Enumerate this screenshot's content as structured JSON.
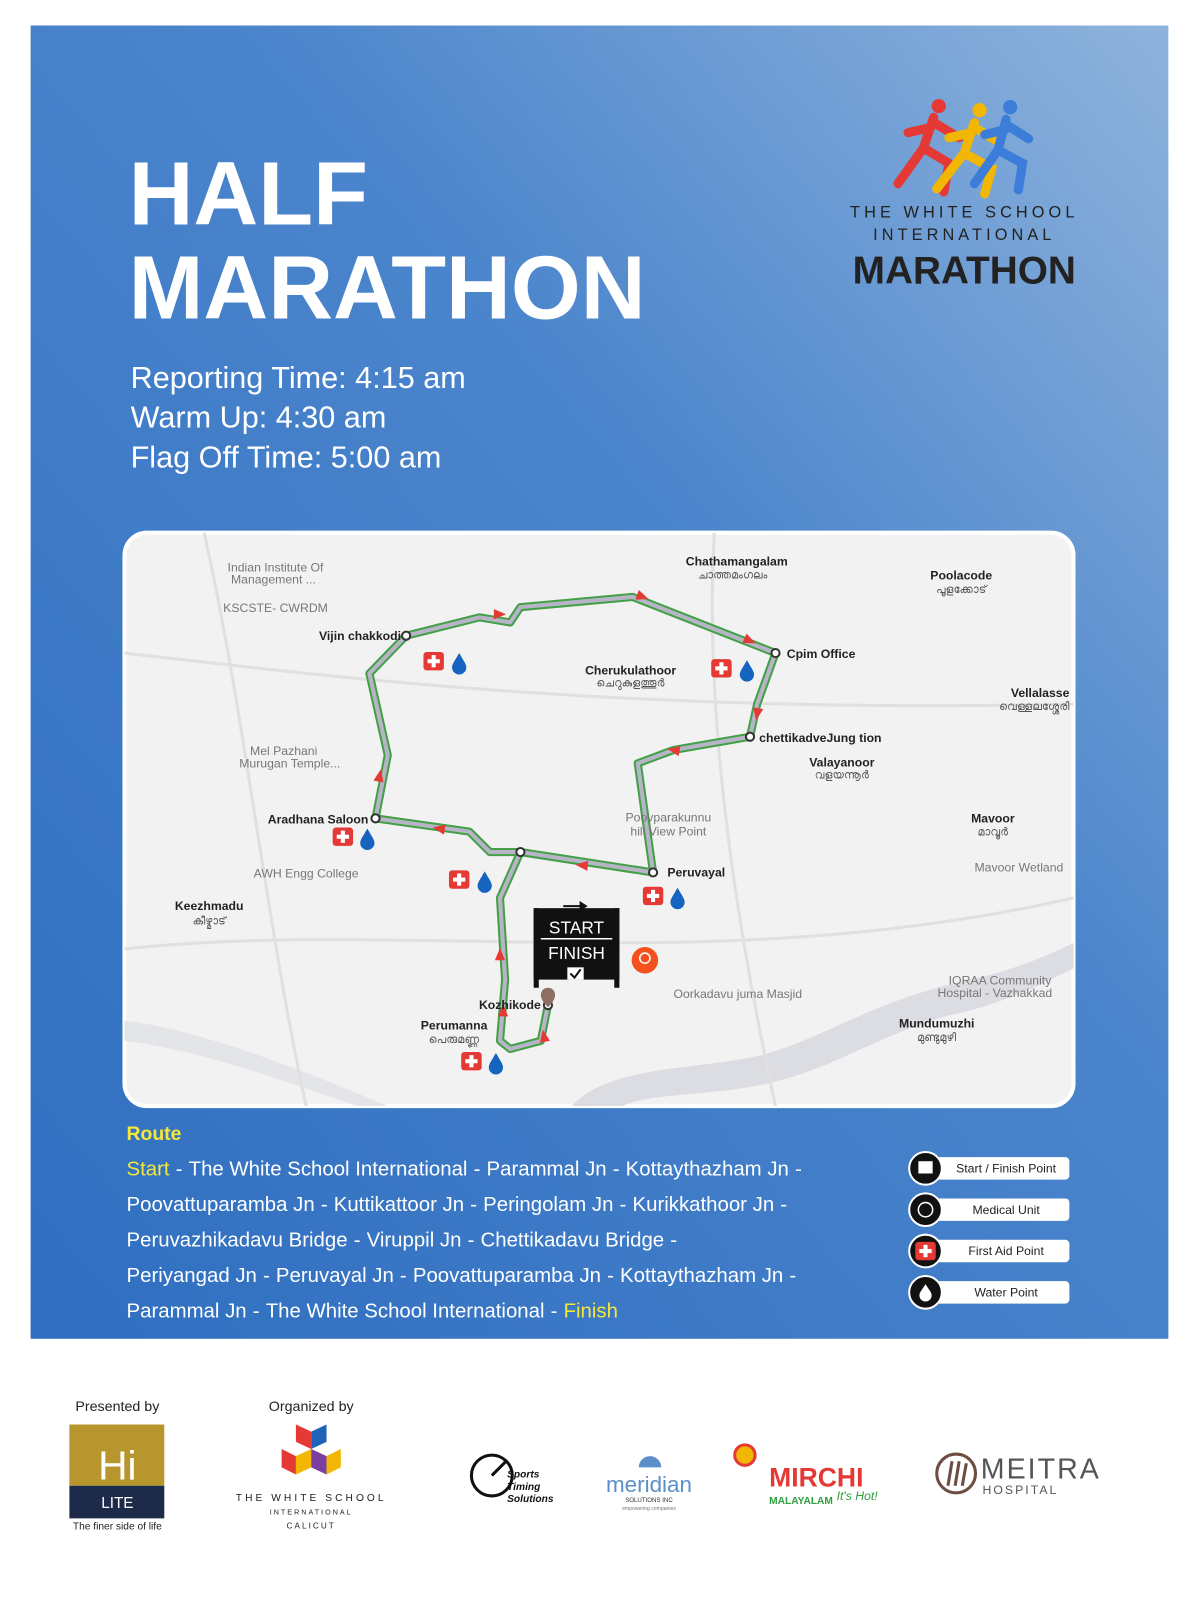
{
  "logo": {
    "line1": "THE WHITE SCHOOL",
    "line2": "INTERNATIONAL",
    "line3": "MARATHON"
  },
  "header": {
    "title": [
      "HALF",
      "MARATHON"
    ],
    "times": [
      "Reporting Time: 4:15 am",
      "Warm Up: 4:30 am",
      "Flag Off Time: 5:00 am"
    ]
  },
  "map": {
    "start_sign": "START",
    "finish_sign": "FINISH",
    "labels": [
      "Indian Institute Of",
      "Management ...",
      "KSCSTE- CWRDM",
      "Chathamangalam",
      "ചാത്തമംഗലം",
      "Poolacode",
      "പൂളക്കോട്",
      "Vijin chakkodi",
      "Cpim Office",
      "Cherukulathoor",
      "ചെറുകുളത്തൂർ",
      "Vellalasse",
      "വെള്ളലശ്ശേരി",
      "chettikadveJung tion",
      "Valayanoor",
      "വളയന്നൂർ",
      "Mel Pazhani",
      "Murugan Temple...",
      "Aradhana Saloon",
      "Poovparakunnu",
      "hill View Point",
      "Mavoor",
      "മാവൂർ",
      "Peruvayal",
      "Mavoor Wetland",
      "AWH Engg College",
      "Keezhmadu",
      "കീഴ്മാട്",
      "IQRAA Community",
      "Hospital - Vazhakkad",
      "Oorkadavu juma Masjid",
      "Mundumuzhi",
      "മുണ്ടുമുഴി",
      "Kozhikode",
      "Perumanna",
      "പെരുമണ്ണ"
    ]
  },
  "route": {
    "heading": "Route",
    "start": "Start",
    "finish": "Finish",
    "separator": "-",
    "lines": [
      [
        "The White School International",
        "Parammal Jn",
        "Kottaythazham Jn"
      ],
      [
        "Poovattuparamba Jn",
        "Kuttikattoor Jn",
        "Peringolam Jn",
        "Kurikkathoor Jn"
      ],
      [
        "Peruvazhikadavu Bridge",
        "Viruppil Jn",
        "Chettikadavu Bridge"
      ],
      [
        "Periyangad Jn",
        "Peruvayal Jn",
        "Poovattuparamba Jn",
        "Kottaythazham Jn"
      ],
      [
        "Parammal Jn",
        "The White School International"
      ]
    ]
  },
  "legend": [
    "Start / Finish Point",
    "Medical Unit",
    "First Aid Point",
    "Water Point"
  ],
  "footer": {
    "presented_by": "Presented by",
    "hilite": {
      "hi": "Hi",
      "lite": "LITE",
      "tagline": "The finer side of life"
    },
    "organized_by": "Organized by",
    "organizer": [
      "THE WHITE SCHOOL",
      "INTERNATIONAL",
      "CALICUT"
    ],
    "sts": [
      "Sports",
      "Timing",
      "Solutions"
    ],
    "meridian": [
      "meridian",
      "SOLUTIONS INC",
      "empowering companies"
    ],
    "mirchi": [
      "MIRCHI",
      "MALAYALAM",
      "It's Hot!"
    ],
    "meitra": [
      "MEITRA",
      "HOSPITAL"
    ]
  }
}
